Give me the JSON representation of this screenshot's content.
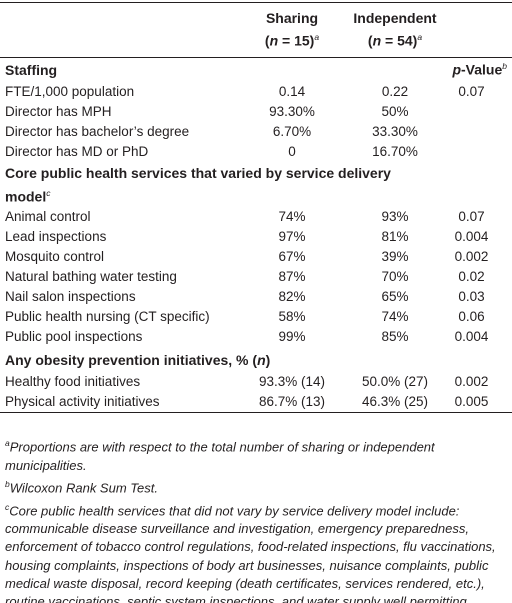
{
  "columns": [
    [
      {
        "text": "Sharing",
        "style": "bold"
      },
      {
        "text": "(",
        "style": "bold"
      },
      {
        "text": "n",
        "style": "bold-italic"
      },
      {
        "text": " = 15)",
        "style": "bold"
      },
      {
        "text": "a",
        "style": "sup"
      }
    ],
    [
      {
        "text": "Independent",
        "style": "bold"
      },
      {
        "text": "(",
        "style": "bold"
      },
      {
        "text": "n",
        "style": "bold-italic"
      },
      {
        "text": " = 54)",
        "style": "bold"
      },
      {
        "text": "a",
        "style": "sup"
      }
    ]
  ],
  "pvalue_header": [
    {
      "text": "p",
      "style": "bold-italic"
    },
    {
      "text": "-Value",
      "style": "bold"
    },
    {
      "text": "b",
      "style": "sup"
    }
  ],
  "sections": [
    {
      "heading": [
        {
          "text": "Staffing",
          "style": "bold"
        }
      ],
      "rows": [
        [
          "FTE/1,000 population",
          "0.14",
          "0.22",
          "0.07"
        ],
        [
          "Director has MPH",
          "93.30%",
          "50%",
          ""
        ],
        [
          "Director has bachelor’s degree",
          "6.70%",
          "33.30%",
          ""
        ],
        [
          "Director has MD or PhD",
          "0",
          "16.70%",
          ""
        ]
      ]
    },
    {
      "heading": [
        {
          "text": "Core public health services that varied by service delivery model",
          "style": "bold"
        },
        {
          "text": "c",
          "style": "sup"
        }
      ],
      "rows": [
        [
          "Animal control",
          "74%",
          "93%",
          "0.07"
        ],
        [
          "Lead inspections",
          "97%",
          "81%",
          "0.004"
        ],
        [
          "Mosquito control",
          "67%",
          "39%",
          "0.002"
        ],
        [
          "Natural bathing water testing",
          "87%",
          "70%",
          "0.02"
        ],
        [
          "Nail salon inspections",
          "82%",
          "65%",
          "0.03"
        ],
        [
          "Public health nursing (CT specific)",
          "58%",
          "74%",
          "0.06"
        ],
        [
          "Public pool inspections",
          "99%",
          "85%",
          "0.004"
        ]
      ]
    },
    {
      "heading": [
        {
          "text": "Any obesity prevention initiatives, % (",
          "style": "bold"
        },
        {
          "text": "n",
          "style": "bold-italic"
        },
        {
          "text": ")",
          "style": "bold"
        }
      ],
      "rows": [
        [
          "Healthy food initiatives",
          "93.3% (14)",
          "50.0% (27)",
          "0.002"
        ],
        [
          "Physical activity initiatives",
          "86.7% (13)",
          "46.3% (25)",
          "0.005"
        ]
      ]
    }
  ],
  "footnotes": [
    [
      {
        "text": "a",
        "style": "sup"
      },
      {
        "text": "Proportions are with respect to the total number of sharing or independent municipalities.",
        "style": "italic"
      }
    ],
    [
      {
        "text": "b",
        "style": "sup"
      },
      {
        "text": "Wilcoxon Rank Sum Test.",
        "style": "italic"
      }
    ],
    [
      {
        "text": "c",
        "style": "sup"
      },
      {
        "text": "Core public health services that did not vary by service delivery model include: communicable disease surveillance and investigation, emergency preparedness, enforcement of tobacco control regulations, food-related inspections, flu vaccinations, housing complaints, inspections of body art businesses, nuisance complaints, public medical waste disposal, record keeping (death certificates, services rendered, etc.), routine vaccinations, septic system inspections, and water supply well permitting.",
        "style": "italic"
      }
    ]
  ]
}
